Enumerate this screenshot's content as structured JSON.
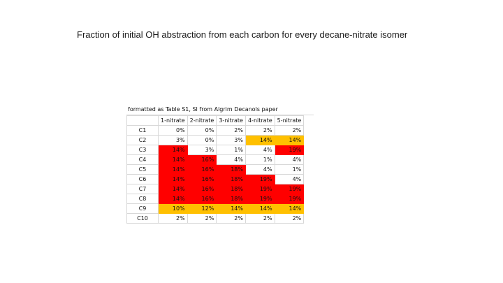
{
  "slide": {
    "title": "Fraction of initial OH abstraction from each carbon for every decane-nitrate isomer"
  },
  "table": {
    "caption": "formatted as Table S1, SI from Algrim Decanols paper",
    "columns": [
      "1-nitrate",
      "2-nitrate",
      "3-nitrate",
      "4-nitrate",
      "5-nitrate"
    ],
    "colors": {
      "red": "#ff0000",
      "orange": "#ffc000"
    },
    "rows": [
      {
        "label": "C1",
        "cells": [
          {
            "v": "0%",
            "c": ""
          },
          {
            "v": "0%",
            "c": ""
          },
          {
            "v": "2%",
            "c": ""
          },
          {
            "v": "2%",
            "c": ""
          },
          {
            "v": "2%",
            "c": ""
          }
        ]
      },
      {
        "label": "C2",
        "cells": [
          {
            "v": "3%",
            "c": ""
          },
          {
            "v": "0%",
            "c": ""
          },
          {
            "v": "3%",
            "c": ""
          },
          {
            "v": "14%",
            "c": "orange"
          },
          {
            "v": "14%",
            "c": "orange"
          }
        ]
      },
      {
        "label": "C3",
        "cells": [
          {
            "v": "14%",
            "c": "red"
          },
          {
            "v": "3%",
            "c": ""
          },
          {
            "v": "1%",
            "c": ""
          },
          {
            "v": "4%",
            "c": ""
          },
          {
            "v": "19%",
            "c": "red"
          }
        ]
      },
      {
        "label": "C4",
        "cells": [
          {
            "v": "14%",
            "c": "red"
          },
          {
            "v": "16%",
            "c": "red"
          },
          {
            "v": "4%",
            "c": ""
          },
          {
            "v": "1%",
            "c": ""
          },
          {
            "v": "4%",
            "c": ""
          }
        ]
      },
      {
        "label": "C5",
        "cells": [
          {
            "v": "14%",
            "c": "red"
          },
          {
            "v": "16%",
            "c": "red"
          },
          {
            "v": "18%",
            "c": "red"
          },
          {
            "v": "4%",
            "c": ""
          },
          {
            "v": "1%",
            "c": ""
          }
        ]
      },
      {
        "label": "C6",
        "cells": [
          {
            "v": "14%",
            "c": "red"
          },
          {
            "v": "16%",
            "c": "red"
          },
          {
            "v": "18%",
            "c": "red"
          },
          {
            "v": "19%",
            "c": "red"
          },
          {
            "v": "4%",
            "c": ""
          }
        ]
      },
      {
        "label": "C7",
        "cells": [
          {
            "v": "14%",
            "c": "red"
          },
          {
            "v": "16%",
            "c": "red"
          },
          {
            "v": "18%",
            "c": "red"
          },
          {
            "v": "19%",
            "c": "red"
          },
          {
            "v": "19%",
            "c": "red"
          }
        ]
      },
      {
        "label": "C8",
        "cells": [
          {
            "v": "14%",
            "c": "red"
          },
          {
            "v": "16%",
            "c": "red"
          },
          {
            "v": "18%",
            "c": "red"
          },
          {
            "v": "19%",
            "c": "red"
          },
          {
            "v": "19%",
            "c": "red"
          }
        ]
      },
      {
        "label": "C9",
        "cells": [
          {
            "v": "10%",
            "c": "orange"
          },
          {
            "v": "12%",
            "c": "orange"
          },
          {
            "v": "14%",
            "c": "orange"
          },
          {
            "v": "14%",
            "c": "orange"
          },
          {
            "v": "14%",
            "c": "orange"
          }
        ]
      },
      {
        "label": "C10",
        "cells": [
          {
            "v": "2%",
            "c": ""
          },
          {
            "v": "2%",
            "c": ""
          },
          {
            "v": "2%",
            "c": ""
          },
          {
            "v": "2%",
            "c": ""
          },
          {
            "v": "2%",
            "c": ""
          }
        ]
      }
    ]
  }
}
